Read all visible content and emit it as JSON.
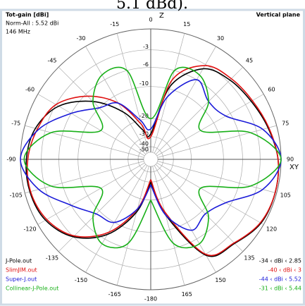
{
  "chart_data": {
    "type": "polar",
    "caption_fragment": "5.1 dBd).",
    "title": "Tot-gain [dBi]",
    "subtitle": "Norm-All : 5.52 dBi",
    "frequency": "146 MHz",
    "plane": "Vertical plane",
    "axis_label_top": "Z",
    "axis_label_right": "XY",
    "scale": "arrl-log",
    "rlim": [
      -50,
      0
    ],
    "rticks": [
      -3,
      -6,
      -10,
      -20,
      -30,
      -40,
      -50
    ],
    "xticks": [
      -180,
      -165,
      -150,
      -135,
      -120,
      -105,
      -90,
      -75,
      -60,
      -45,
      -30,
      -15,
      0,
      15,
      30,
      45,
      60,
      75,
      90,
      105,
      120,
      135,
      150,
      165
    ],
    "x": [
      -180,
      -165,
      -150,
      -135,
      -120,
      -105,
      -90,
      -75,
      -60,
      -45,
      -30,
      -15,
      0,
      15,
      30,
      45,
      60,
      75,
      90,
      105,
      120,
      135,
      150,
      165,
      180
    ],
    "series": [
      {
        "name": "J-Pole.out",
        "range": "-34 ‹ dBi ‹ 2.85",
        "color": "#000000",
        "values": [
          -30,
          -15,
          -7,
          -3,
          -1.2,
          -0.7,
          -0.8,
          -1.5,
          -3.5,
          -8,
          -15,
          -25,
          -28,
          -9.3,
          -3.8,
          -2.6,
          -2,
          -1.2,
          -0.4,
          -0.2,
          -0.4,
          -1.6,
          -2.8,
          -14,
          -30
        ]
      },
      {
        "name": "SlimJIM.out",
        "range": "-40 ‹ dBi ‹ 3",
        "color": "#e01010",
        "values": [
          -32,
          -16,
          -7.5,
          -3.2,
          -1.4,
          -0.8,
          -1,
          -1.8,
          -3,
          -6.5,
          -12,
          -22,
          -30,
          -8,
          -3.2,
          -2.3,
          -1.8,
          -1.1,
          -0.4,
          -0.2,
          -0.5,
          -1.7,
          -3,
          -15,
          -32
        ]
      },
      {
        "name": "Super-J.out",
        "range": "-44 ‹ dBi ‹ 5.52",
        "color": "#1a1ad8",
        "values": [
          -28,
          -16,
          -10,
          -9,
          -6,
          -2,
          0,
          -2,
          -6,
          -10,
          -12,
          -20,
          -25,
          -12,
          -6,
          -8,
          -7,
          -2,
          0,
          -2,
          -7,
          -9,
          -8,
          -14,
          -28
        ]
      },
      {
        "name": "Collinear-J-Pole.out",
        "range": "-31 ‹ dBi ‹ 5.44",
        "color": "#18b018",
        "values": [
          -20,
          -7,
          -5,
          -8,
          -14,
          -4,
          -0.5,
          -4,
          -14,
          -8,
          -5,
          -6,
          -20,
          -6,
          -5,
          -8,
          -14,
          -4,
          0,
          -4,
          -14,
          -8,
          -5,
          -7,
          -20
        ]
      }
    ]
  }
}
